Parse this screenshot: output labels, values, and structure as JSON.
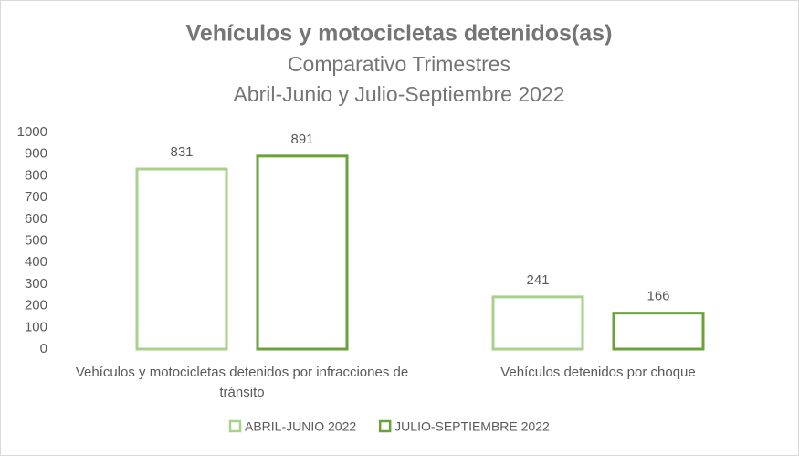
{
  "chart_data": {
    "type": "bar",
    "title": "Vehículos y motocicletas detenidos(as)",
    "subtitle": [
      "Comparativo Trimestres",
      "Abril-Junio y Julio-Septiembre 2022"
    ],
    "categories": [
      "Vehículos y motocicletas detenidos por infracciones de tránsito",
      "Vehículos detenidos por choque"
    ],
    "series": [
      {
        "name": "ABRIL-JUNIO 2022",
        "color": "#a9d18e",
        "values": [
          831,
          241
        ]
      },
      {
        "name": "JULIO-SEPTIEMBRE 2022",
        "color": "#6aa23a",
        "values": [
          891,
          166
        ]
      }
    ],
    "ylim": [
      0,
      1000
    ],
    "yticks": [
      0,
      100,
      200,
      300,
      400,
      500,
      600,
      700,
      800,
      900,
      1000
    ],
    "grid": false,
    "legend": "bottom"
  }
}
